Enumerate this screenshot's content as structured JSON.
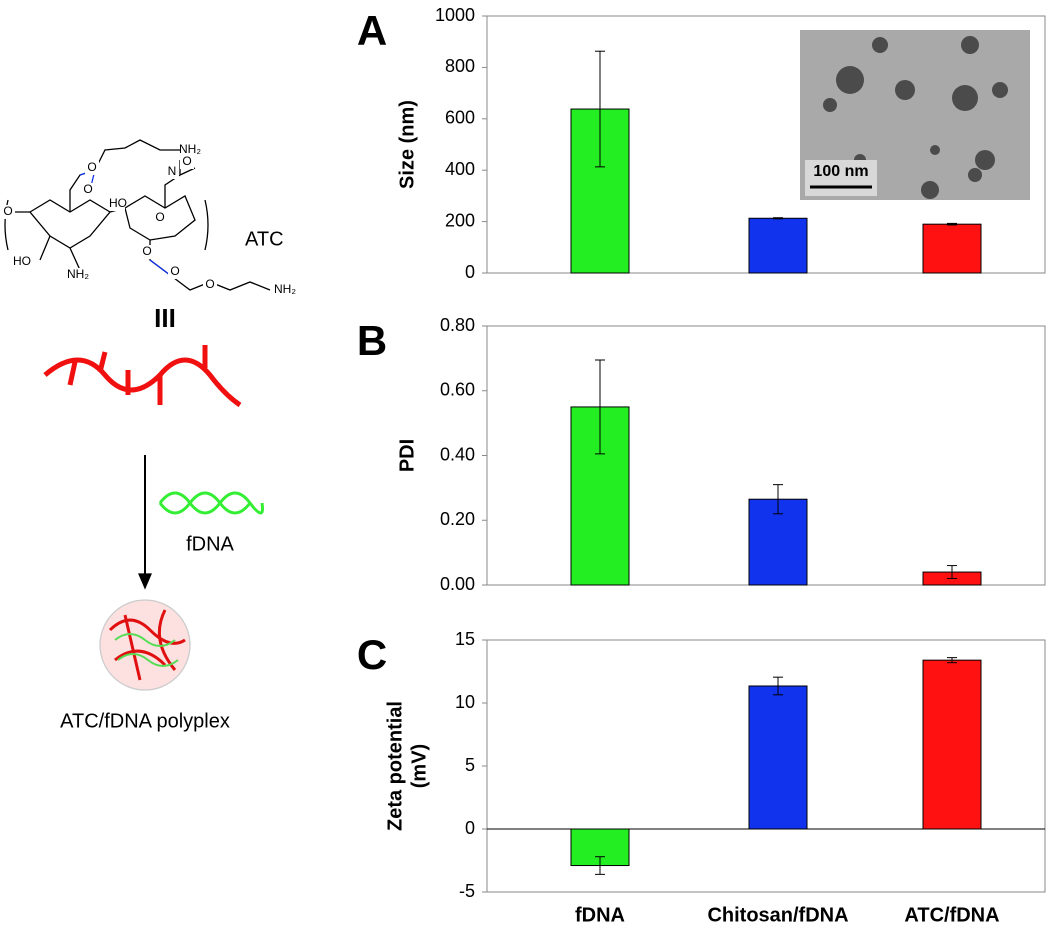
{
  "chart_data": [
    {
      "type": "bar",
      "panel": "A",
      "ylabel": [
        "Size (nm)"
      ],
      "categories": [
        null,
        null,
        null
      ],
      "values": [
        638,
        213,
        190
      ],
      "errors": [
        225,
        2,
        3
      ],
      "colors": [
        "#22ee22",
        "#1133ee",
        "#ff1111"
      ],
      "ylim": [
        0,
        1000
      ],
      "yticks": [
        0,
        200,
        400,
        600,
        800,
        1000
      ],
      "inset_scale_label": "100 nm"
    },
    {
      "type": "bar",
      "panel": "B",
      "ylabel": [
        "PDI"
      ],
      "categories": [
        null,
        null,
        null
      ],
      "values": [
        0.55,
        0.265,
        0.04
      ],
      "errors": [
        0.145,
        0.045,
        0.02
      ],
      "colors": [
        "#22ee22",
        "#1133ee",
        "#ff1111"
      ],
      "ylim": [
        0,
        0.8
      ],
      "yticks": [
        {
          "value": 0,
          "label": "0.00"
        },
        {
          "value": 0.2,
          "label": "0.20"
        },
        {
          "value": 0.4,
          "label": "0.40"
        },
        {
          "value": 0.6,
          "label": "0.60"
        },
        {
          "value": 0.8,
          "label": "0.80"
        }
      ]
    },
    {
      "type": "bar",
      "panel": "C",
      "ylabel": [
        "Zeta potential",
        "(mV)"
      ],
      "categories": [
        "fDNA",
        "Chitosan/fDNA",
        "ATC/fDNA"
      ],
      "values": [
        -2.9,
        11.35,
        13.4
      ],
      "errors": [
        0.7,
        0.7,
        0.2
      ],
      "colors": [
        "#22ee22",
        "#1133ee",
        "#ff1111"
      ],
      "ylim": [
        -5,
        15
      ],
      "yticks": [
        -5,
        0,
        5,
        10,
        15
      ],
      "zero_line": true
    }
  ],
  "diagram": {
    "polymer_label": "ATC",
    "numeral": "III",
    "dna_label": "fDNA",
    "product_label": "ATC/fDNA polyplex",
    "atom_labels": [
      "O",
      "NH₂",
      "O",
      "N",
      "O",
      "HO",
      "O",
      "HO",
      "NH₂",
      "O",
      "O",
      "O",
      "NH₂",
      "O"
    ]
  }
}
